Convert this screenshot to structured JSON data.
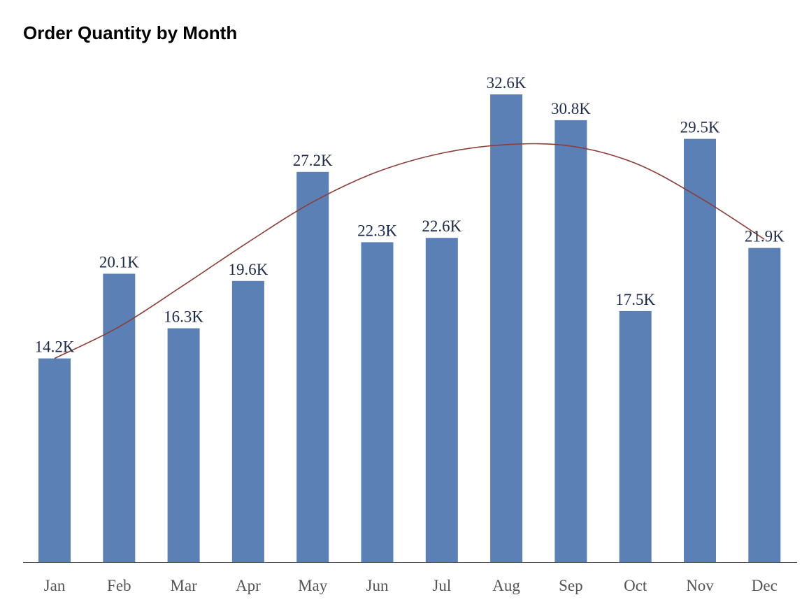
{
  "chart_data": {
    "type": "bar",
    "title": "Order Quantity by Month",
    "xlabel": "",
    "ylabel": "",
    "categories": [
      "Jan",
      "Feb",
      "Mar",
      "Apr",
      "May",
      "Jun",
      "Jul",
      "Aug",
      "Sep",
      "Oct",
      "Nov",
      "Dec"
    ],
    "values": [
      14.2,
      20.1,
      16.3,
      19.6,
      27.2,
      22.3,
      22.6,
      32.6,
      30.8,
      17.5,
      29.5,
      21.9
    ],
    "value_labels": [
      "14.2K",
      "20.1K",
      "16.3K",
      "19.6K",
      "27.2K",
      "22.3K",
      "22.6K",
      "32.6K",
      "30.8K",
      "17.5K",
      "29.5K",
      "21.9K"
    ],
    "unit": "K",
    "ylim": [
      0,
      32.6
    ],
    "grid": false,
    "trend_line": {
      "type": "smooth",
      "values": [
        14.2,
        16.4,
        19.3,
        22.3,
        25.1,
        27.2,
        28.5,
        29.1,
        29.0,
        27.8,
        25.4,
        22.5
      ]
    },
    "colors": {
      "bar": "#5b80b6",
      "trend": "#8b3e36",
      "label": "#1c2a4a",
      "axis": "#555555",
      "tick": "#555555"
    }
  }
}
